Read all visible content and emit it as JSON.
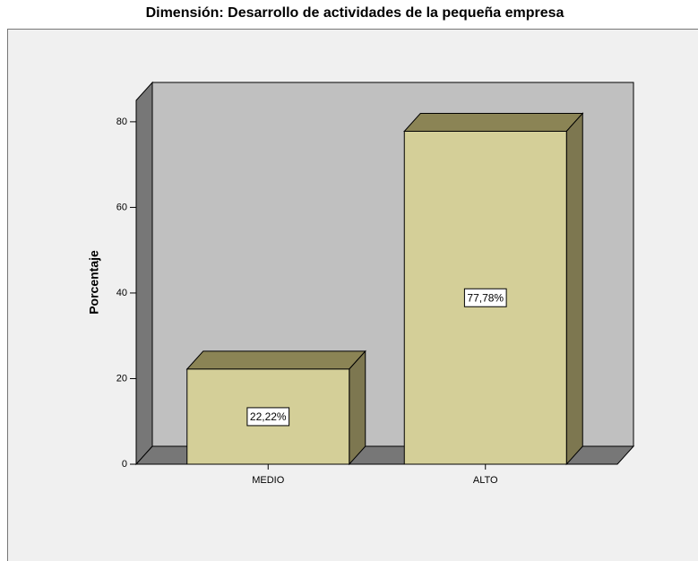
{
  "chart_data": {
    "type": "bar3d",
    "title": "Dimensión: Desarrollo de actividades de la pequeña empresa",
    "ylabel": "Porcentaje",
    "categories": [
      "MEDIO",
      "ALTO"
    ],
    "values": [
      22.22,
      77.78
    ],
    "value_labels": [
      "22,22%",
      "77,78%"
    ],
    "color": "#d4cf98",
    "ylim": [
      0,
      85
    ],
    "yticks": [
      0,
      20,
      40,
      60,
      80
    ]
  }
}
